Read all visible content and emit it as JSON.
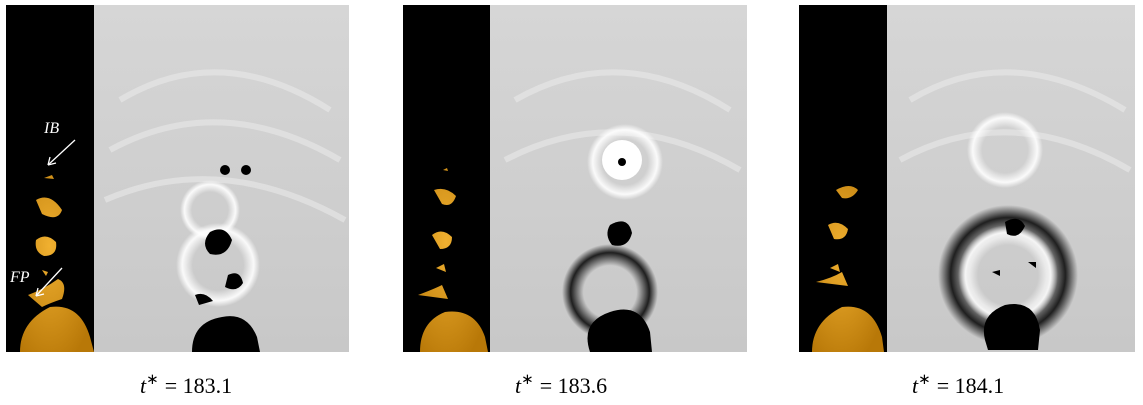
{
  "panels": [
    {
      "caption": {
        "symbol": "t",
        "superscript": "∗",
        "rest": "= 183.1"
      },
      "annotations": [
        "IB",
        "FP"
      ]
    },
    {
      "caption": {
        "symbol": "t",
        "superscript": "∗",
        "rest": "= 183.6"
      }
    },
    {
      "caption": {
        "symbol": "t",
        "superscript": "∗",
        "rest": "= 184.1"
      }
    }
  ]
}
